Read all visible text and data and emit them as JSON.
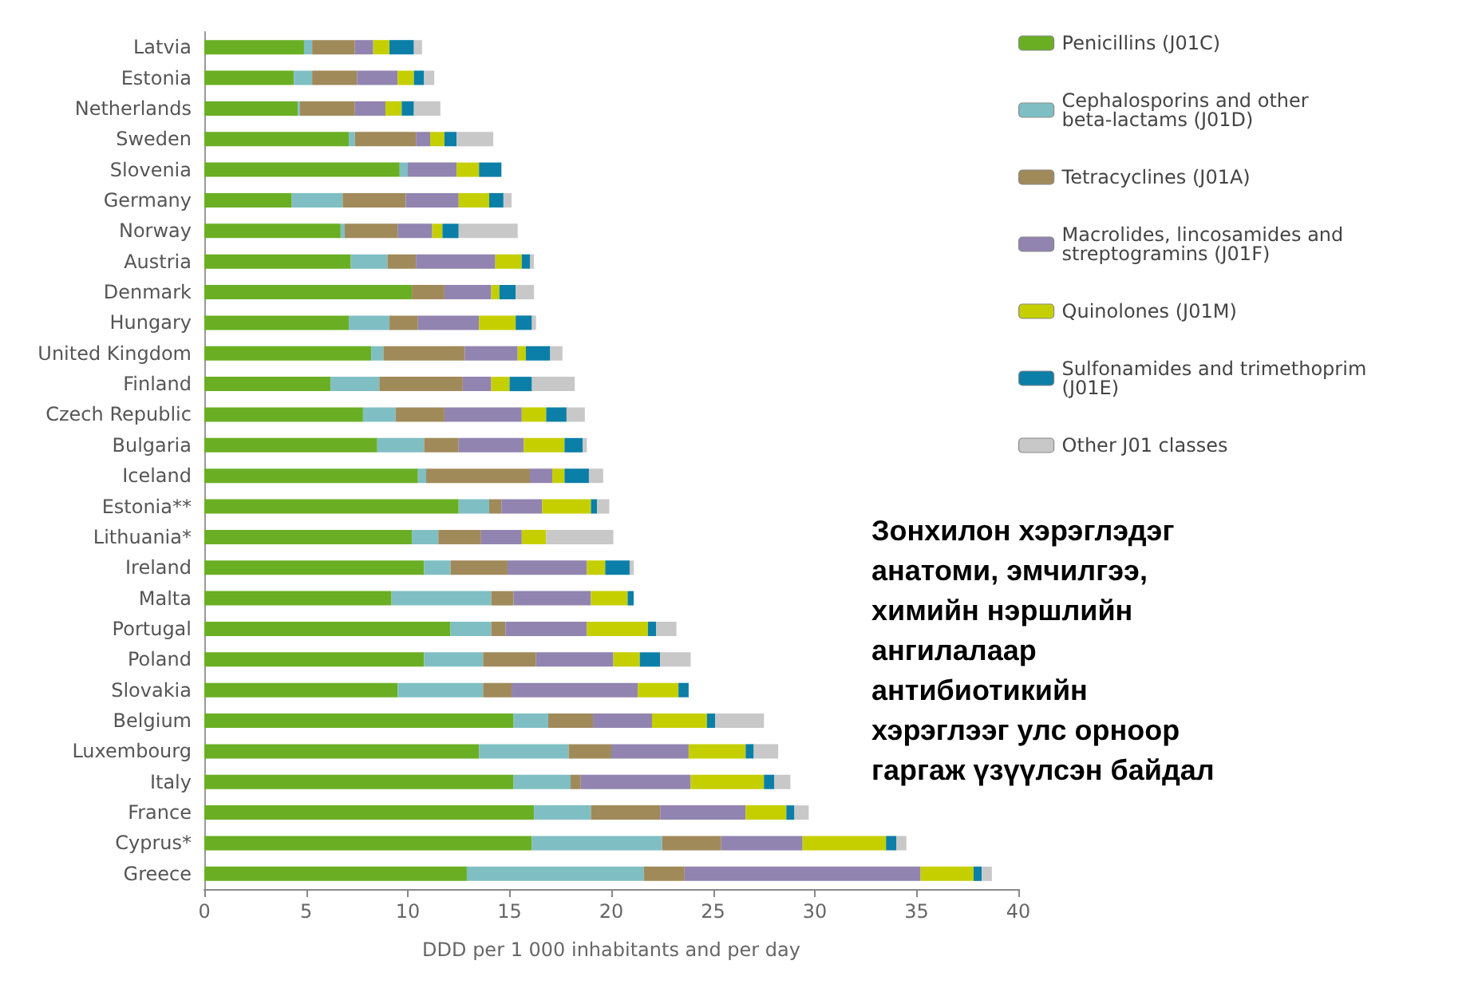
{
  "chart_data": {
    "type": "bar",
    "orientation": "horizontal",
    "stacked": true,
    "xlabel": "DDD per 1 000 inhabitants and per day",
    "annotations": [
      "Зонхилон хэрэглэдэг анатоми, эмчилгээ, химийн нэршлийн ангилалаар антибиотикийн хэрэглээг улс орноор гаргаж үзүүлсэн байдал"
    ],
    "categories": [
      "Latvia",
      "Estonia",
      "Netherlands",
      "Sweden",
      "Slovenia",
      "Germany",
      "Norway",
      "Austria",
      "Denmark",
      "Hungary",
      "United Kingdom",
      "Finland",
      "Czech Republic",
      "Bulgaria",
      "Iceland",
      "Estonia**",
      "Lithuania*",
      "Ireland",
      "Malta",
      "Portugal",
      "Poland",
      "Slovakia",
      "Belgium",
      "Luxembourg",
      "Italy",
      "France",
      "Cyprus*",
      "Greece"
    ],
    "series": [
      {
        "name": "Penicillins (J01C)",
        "color": "#6aaf23",
        "values": [
          4.9,
          4.4,
          4.6,
          7.1,
          9.6,
          4.3,
          6.7,
          7.2,
          10.2,
          7.1,
          8.2,
          6.2,
          7.8,
          8.5,
          10.5,
          12.5,
          10.2,
          10.8,
          9.2,
          12.1,
          10.8,
          9.5,
          15.2,
          13.5,
          15.2,
          16.2,
          16.1,
          12.9
        ]
      },
      {
        "name": "Cephalosporins and other beta-lactams (J01D)",
        "color": "#7fbfc4",
        "values": [
          0.4,
          0.9,
          0.1,
          0.3,
          0.4,
          2.5,
          0.2,
          1.8,
          0,
          2.0,
          0.6,
          2.4,
          1.6,
          2.3,
          0.4,
          1.5,
          1.3,
          1.3,
          4.9,
          2.0,
          2.9,
          4.2,
          1.7,
          4.4,
          2.8,
          2.8,
          6.4,
          8.7
        ]
      },
      {
        "name": "Tetracyclines (J01A)",
        "color": "#a08a5a",
        "values": [
          2.1,
          2.2,
          2.7,
          3.0,
          0,
          3.1,
          2.6,
          1.4,
          1.6,
          1.4,
          4.0,
          4.1,
          2.4,
          1.7,
          5.1,
          0.6,
          2.1,
          2.8,
          1.1,
          0.7,
          2.6,
          1.4,
          2.2,
          2.1,
          0.5,
          3.4,
          2.9,
          2.0
        ]
      },
      {
        "name": "Macrolides, lincosamides and streptogramins (J01F)",
        "color": "#9184b0",
        "values": [
          0.9,
          2.0,
          1.5,
          0.7,
          2.4,
          2.6,
          1.7,
          3.9,
          2.3,
          3.0,
          2.6,
          1.4,
          3.8,
          3.2,
          1.1,
          2.0,
          2.0,
          3.9,
          3.8,
          4.0,
          3.8,
          6.2,
          2.9,
          3.8,
          5.4,
          4.2,
          4.0,
          11.6
        ]
      },
      {
        "name": "Quinolones (J01M)",
        "color": "#c5cf00",
        "values": [
          0.8,
          0.8,
          0.8,
          0.7,
          1.1,
          1.5,
          0.5,
          1.3,
          0.4,
          1.8,
          0.4,
          0.9,
          1.2,
          2.0,
          0.6,
          2.4,
          1.2,
          0.9,
          1.8,
          3.0,
          1.3,
          2.0,
          2.7,
          2.8,
          3.6,
          2.0,
          4.1,
          2.6
        ]
      },
      {
        "name": "Sulfonamides and trimethoprim (J01E)",
        "color": "#0b7fa8",
        "values": [
          1.2,
          0.5,
          0.6,
          0.6,
          1.1,
          0.7,
          0.8,
          0.4,
          0.8,
          0.8,
          1.2,
          1.1,
          1.0,
          0.9,
          1.2,
          0.3,
          0,
          1.2,
          0.3,
          0.4,
          1.0,
          0.5,
          0.4,
          0.4,
          0.5,
          0.4,
          0.5,
          0.4
        ]
      },
      {
        "name": "Other J01 classes",
        "color": "#c8c8c8",
        "values": [
          0.4,
          0.5,
          1.3,
          1.8,
          0,
          0.4,
          2.9,
          0.2,
          0.9,
          0.2,
          0.6,
          2.1,
          0.9,
          0.2,
          0.7,
          0.6,
          3.3,
          0.2,
          0,
          1.0,
          1.5,
          0,
          2.4,
          1.2,
          0.8,
          0.7,
          0.5,
          0.5
        ]
      }
    ],
    "xlim": [
      0,
      40
    ],
    "xticks": [
      0,
      5,
      10,
      15,
      20,
      25,
      30,
      35,
      40
    ],
    "grid": false,
    "legend": "right"
  }
}
